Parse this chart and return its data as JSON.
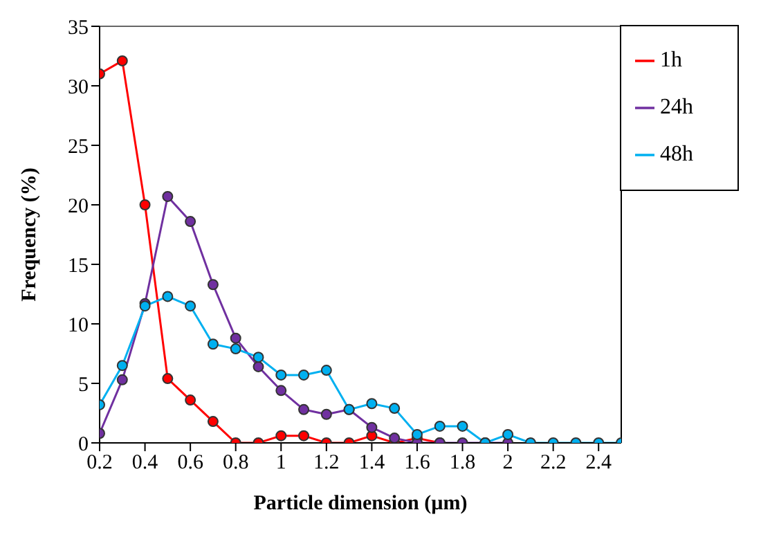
{
  "chart_data": {
    "type": "line",
    "xlabel": "Particle dimension (µm)",
    "ylabel": "Frequency (%)",
    "xlim": [
      0.2,
      2.5
    ],
    "xticks": [
      0.2,
      0.4,
      0.6,
      0.8,
      1,
      1.2,
      1.4,
      1.6,
      1.8,
      2,
      2.2,
      2.4
    ],
    "ylim": [
      0,
      35
    ],
    "yticks": [
      0,
      5,
      10,
      15,
      20,
      25,
      30,
      35
    ],
    "legend": "top right",
    "marker": "circle",
    "line_style": "solid",
    "series": [
      {
        "name": "1h",
        "color": "#ff0000",
        "x": [
          0.2,
          0.3,
          0.4,
          0.5,
          0.6,
          0.7,
          0.8,
          0.9,
          1.0,
          1.1,
          1.2,
          1.3,
          1.4,
          1.5,
          1.6,
          1.7
        ],
        "values": [
          31,
          32.1,
          20,
          5.4,
          3.6,
          1.8,
          0,
          0,
          0.6,
          0.6,
          0,
          0,
          0.6,
          0,
          0.4,
          0
        ]
      },
      {
        "name": "24h",
        "color": "#7030a0",
        "x": [
          0.2,
          0.3,
          0.4,
          0.5,
          0.6,
          0.7,
          0.8,
          0.9,
          1.0,
          1.1,
          1.2,
          1.3,
          1.4,
          1.5,
          1.6,
          1.7,
          1.8,
          1.9,
          2.0
        ],
        "values": [
          0.8,
          5.3,
          11.7,
          20.7,
          18.6,
          13.3,
          8.8,
          6.4,
          4.4,
          2.8,
          2.4,
          2.8,
          1.3,
          0.4,
          0,
          0,
          0,
          0,
          0
        ]
      },
      {
        "name": "48h",
        "color": "#00b0f0",
        "x": [
          0.2,
          0.3,
          0.4,
          0.5,
          0.6,
          0.7,
          0.8,
          0.9,
          1.0,
          1.1,
          1.2,
          1.3,
          1.4,
          1.5,
          1.6,
          1.7,
          1.8,
          1.9,
          2.0,
          2.1,
          2.2,
          2.3,
          2.4,
          2.5
        ],
        "values": [
          3.2,
          6.5,
          11.5,
          12.3,
          11.5,
          8.3,
          7.9,
          7.2,
          5.7,
          5.7,
          6.1,
          2.8,
          3.3,
          2.9,
          0.7,
          1.4,
          1.4,
          0,
          0.7,
          0,
          0,
          0,
          0,
          0
        ]
      }
    ]
  }
}
